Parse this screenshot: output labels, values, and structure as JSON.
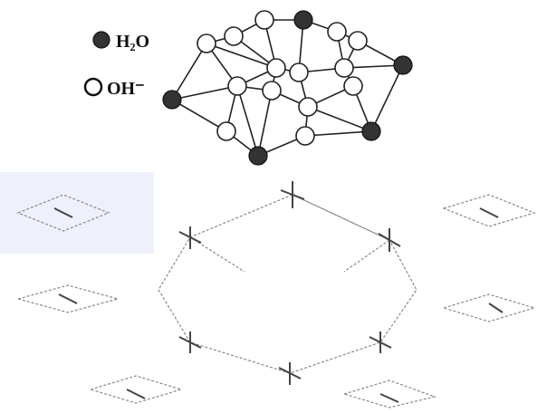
{
  "legend": [
    {
      "label": "H₂O"
    },
    {
      "label": "OH⁻"
    }
  ]
}
